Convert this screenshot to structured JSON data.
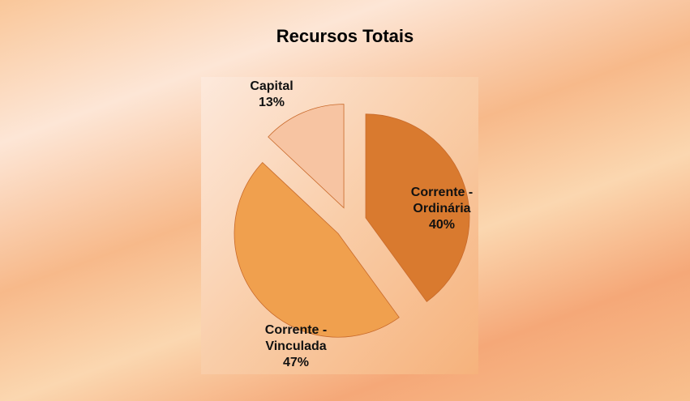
{
  "chart_data": {
    "type": "pie",
    "title": "Recursos Totais",
    "categories": [
      "Corrente - Ordinária",
      "Corrente - Vinculada",
      "Capital"
    ],
    "values": [
      40,
      47,
      13
    ],
    "value_labels": [
      "40%",
      "47%",
      "13%"
    ],
    "colors": [
      "#d97a2f",
      "#f0a04e",
      "#f7c4a2"
    ]
  }
}
